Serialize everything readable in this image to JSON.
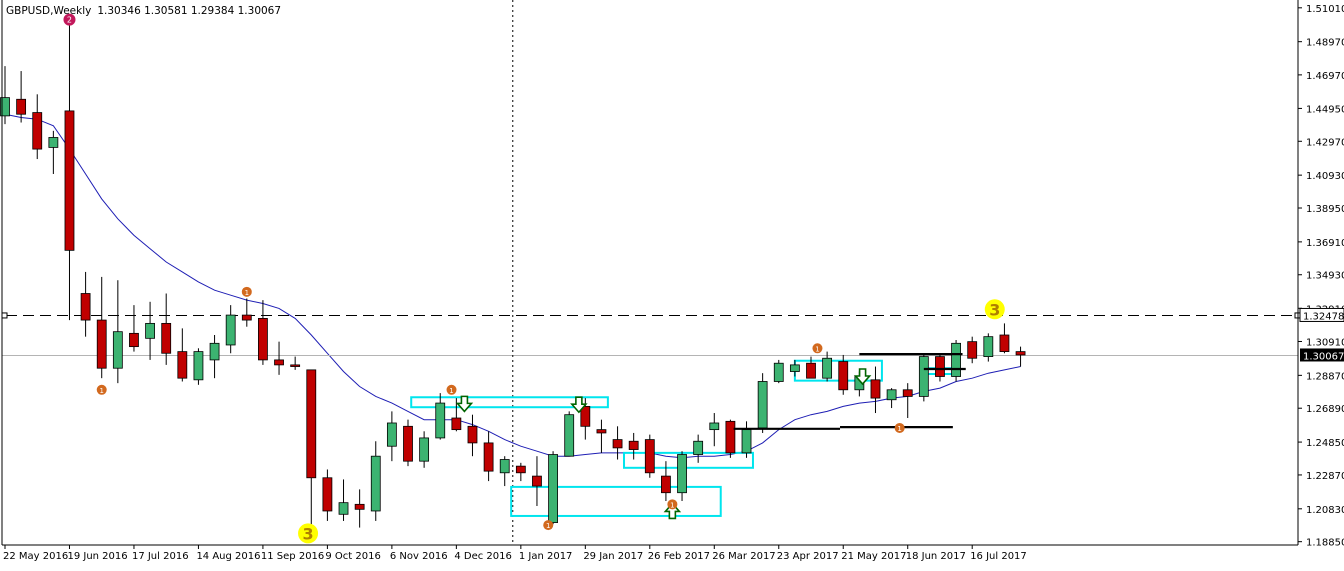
{
  "chart_data": {
    "type": "candlestick",
    "header": {
      "symbol": "GBPUSD,Weekly",
      "ohlc": "1.30346 1.30581 1.29384 1.30067"
    },
    "colors": {
      "bull": "#3cb371",
      "bear": "#c00000",
      "ma": "#1e1eb4",
      "box": "#00e5ee",
      "arrow": "#006400",
      "marker_orange": "#d2691e",
      "marker_magenta": "#c2185b",
      "wave_yellow": "#ffff00",
      "level": "#000000",
      "price_bg": "#000000"
    },
    "y_axis": {
      "min": 1.1865,
      "max": 1.513,
      "ticks": [
        "1.51010",
        "1.48970",
        "1.46970",
        "1.44950",
        "1.42970",
        "1.40930",
        "1.38950",
        "1.36910",
        "1.34930",
        "1.32910",
        "1.30910",
        "1.28870",
        "1.26890",
        "1.24850",
        "1.22870",
        "1.20830",
        "1.18850"
      ]
    },
    "x_axis": {
      "labels": [
        {
          "i": 0,
          "text": "22 May 2016"
        },
        {
          "i": 4,
          "text": "19 Jun 2016"
        },
        {
          "i": 8,
          "text": "17 Jul 2016"
        },
        {
          "i": 12,
          "text": "14 Aug 2016"
        },
        {
          "i": 16,
          "text": "11 Sep 2016"
        },
        {
          "i": 20,
          "text": "9 Oct 2016"
        },
        {
          "i": 24,
          "text": "6 Nov 2016"
        },
        {
          "i": 28,
          "text": "4 Dec 2016"
        },
        {
          "i": 32,
          "text": "1 Jan 2017"
        },
        {
          "i": 36,
          "text": "29 Jan 2017"
        },
        {
          "i": 40,
          "text": "26 Feb 2017"
        },
        {
          "i": 44,
          "text": "26 Mar 2017"
        },
        {
          "i": 48,
          "text": "23 Apr 2017"
        },
        {
          "i": 52,
          "text": "21 May 2017"
        },
        {
          "i": 56,
          "text": "18 Jun 2017"
        },
        {
          "i": 60,
          "text": "16 Jul 2017"
        }
      ]
    },
    "candles": [
      {
        "o": 1.445,
        "h": 1.475,
        "l": 1.44,
        "c": 1.456
      },
      {
        "o": 1.455,
        "h": 1.472,
        "l": 1.441,
        "c": 1.446
      },
      {
        "o": 1.447,
        "h": 1.458,
        "l": 1.419,
        "c": 1.425
      },
      {
        "o": 1.426,
        "h": 1.436,
        "l": 1.41,
        "c": 1.432
      },
      {
        "o": 1.448,
        "h": 1.503,
        "l": 1.322,
        "c": 1.364
      },
      {
        "o": 1.338,
        "h": 1.351,
        "l": 1.312,
        "c": 1.322
      },
      {
        "o": 1.322,
        "h": 1.348,
        "l": 1.287,
        "c": 1.293
      },
      {
        "o": 1.293,
        "h": 1.346,
        "l": 1.284,
        "c": 1.315
      },
      {
        "o": 1.314,
        "h": 1.331,
        "l": 1.303,
        "c": 1.306
      },
      {
        "o": 1.311,
        "h": 1.333,
        "l": 1.298,
        "c": 1.32
      },
      {
        "o": 1.32,
        "h": 1.338,
        "l": 1.295,
        "c": 1.302
      },
      {
        "o": 1.303,
        "h": 1.317,
        "l": 1.285,
        "c": 1.287
      },
      {
        "o": 1.286,
        "h": 1.305,
        "l": 1.283,
        "c": 1.303
      },
      {
        "o": 1.298,
        "h": 1.313,
        "l": 1.287,
        "c": 1.308
      },
      {
        "o": 1.307,
        "h": 1.331,
        "l": 1.302,
        "c": 1.325
      },
      {
        "o": 1.325,
        "h": 1.335,
        "l": 1.318,
        "c": 1.322
      },
      {
        "o": 1.323,
        "h": 1.334,
        "l": 1.295,
        "c": 1.298
      },
      {
        "o": 1.298,
        "h": 1.309,
        "l": 1.289,
        "c": 1.295
      },
      {
        "o": 1.295,
        "h": 1.3,
        "l": 1.292,
        "c": 1.294
      },
      {
        "o": 1.292,
        "h": 1.292,
        "l": 1.195,
        "c": 1.227
      },
      {
        "o": 1.227,
        "h": 1.232,
        "l": 1.201,
        "c": 1.207
      },
      {
        "o": 1.205,
        "h": 1.226,
        "l": 1.201,
        "c": 1.212
      },
      {
        "o": 1.211,
        "h": 1.22,
        "l": 1.197,
        "c": 1.208
      },
      {
        "o": 1.207,
        "h": 1.249,
        "l": 1.201,
        "c": 1.24
      },
      {
        "o": 1.246,
        "h": 1.267,
        "l": 1.237,
        "c": 1.26
      },
      {
        "o": 1.258,
        "h": 1.262,
        "l": 1.234,
        "c": 1.237
      },
      {
        "o": 1.237,
        "h": 1.255,
        "l": 1.233,
        "c": 1.251
      },
      {
        "o": 1.251,
        "h": 1.278,
        "l": 1.25,
        "c": 1.272
      },
      {
        "o": 1.263,
        "h": 1.275,
        "l": 1.255,
        "c": 1.256
      },
      {
        "o": 1.258,
        "h": 1.265,
        "l": 1.24,
        "c": 1.248
      },
      {
        "o": 1.248,
        "h": 1.255,
        "l": 1.225,
        "c": 1.231
      },
      {
        "o": 1.23,
        "h": 1.24,
        "l": 1.222,
        "c": 1.238
      },
      {
        "o": 1.234,
        "h": 1.236,
        "l": 1.225,
        "c": 1.23
      },
      {
        "o": 1.228,
        "h": 1.24,
        "l": 1.21,
        "c": 1.222
      },
      {
        "o": 1.2,
        "h": 1.243,
        "l": 1.199,
        "c": 1.241
      },
      {
        "o": 1.24,
        "h": 1.267,
        "l": 1.24,
        "c": 1.265
      },
      {
        "o": 1.27,
        "h": 1.275,
        "l": 1.25,
        "c": 1.258
      },
      {
        "o": 1.256,
        "h": 1.262,
        "l": 1.242,
        "c": 1.254
      },
      {
        "o": 1.25,
        "h": 1.258,
        "l": 1.238,
        "c": 1.245
      },
      {
        "o": 1.249,
        "h": 1.254,
        "l": 1.238,
        "c": 1.244
      },
      {
        "o": 1.25,
        "h": 1.253,
        "l": 1.227,
        "c": 1.23
      },
      {
        "o": 1.228,
        "h": 1.237,
        "l": 1.213,
        "c": 1.218
      },
      {
        "o": 1.218,
        "h": 1.243,
        "l": 1.213,
        "c": 1.241
      },
      {
        "o": 1.241,
        "h": 1.253,
        "l": 1.236,
        "c": 1.249
      },
      {
        "o": 1.256,
        "h": 1.266,
        "l": 1.246,
        "c": 1.26
      },
      {
        "o": 1.261,
        "h": 1.262,
        "l": 1.239,
        "c": 1.242
      },
      {
        "o": 1.242,
        "h": 1.261,
        "l": 1.239,
        "c": 1.256
      },
      {
        "o": 1.257,
        "h": 1.29,
        "l": 1.254,
        "c": 1.285
      },
      {
        "o": 1.285,
        "h": 1.298,
        "l": 1.284,
        "c": 1.296
      },
      {
        "o": 1.291,
        "h": 1.298,
        "l": 1.288,
        "c": 1.295
      },
      {
        "o": 1.296,
        "h": 1.3,
        "l": 1.287,
        "c": 1.287
      },
      {
        "o": 1.287,
        "h": 1.303,
        "l": 1.285,
        "c": 1.299
      },
      {
        "o": 1.297,
        "h": 1.301,
        "l": 1.277,
        "c": 1.28
      },
      {
        "o": 1.28,
        "h": 1.291,
        "l": 1.276,
        "c": 1.288
      },
      {
        "o": 1.286,
        "h": 1.294,
        "l": 1.266,
        "c": 1.275
      },
      {
        "o": 1.274,
        "h": 1.281,
        "l": 1.269,
        "c": 1.28
      },
      {
        "o": 1.28,
        "h": 1.284,
        "l": 1.263,
        "c": 1.276
      },
      {
        "o": 1.276,
        "h": 1.302,
        "l": 1.273,
        "c": 1.3
      },
      {
        "o": 1.3,
        "h": 1.301,
        "l": 1.285,
        "c": 1.288
      },
      {
        "o": 1.288,
        "h": 1.31,
        "l": 1.285,
        "c": 1.308
      },
      {
        "o": 1.309,
        "h": 1.312,
        "l": 1.296,
        "c": 1.299
      },
      {
        "o": 1.3,
        "h": 1.314,
        "l": 1.297,
        "c": 1.312
      },
      {
        "o": 1.313,
        "h": 1.32,
        "l": 1.302,
        "c": 1.303
      },
      {
        "o": 1.303,
        "h": 1.306,
        "l": 1.294,
        "c": 1.301
      }
    ],
    "ma": [
      1.446,
      1.444,
      1.443,
      1.439,
      1.425,
      1.41,
      1.395,
      1.383,
      1.373,
      1.365,
      1.357,
      1.351,
      1.345,
      1.34,
      1.337,
      1.334,
      1.332,
      1.329,
      1.323,
      1.313,
      1.302,
      1.291,
      1.282,
      1.276,
      1.272,
      1.267,
      1.262,
      1.262,
      1.262,
      1.259,
      1.255,
      1.25,
      1.246,
      1.243,
      1.24,
      1.24,
      1.241,
      1.242,
      1.242,
      1.242,
      1.242,
      1.24,
      1.239,
      1.24,
      1.24,
      1.241,
      1.243,
      1.248,
      1.256,
      1.262,
      1.265,
      1.267,
      1.27,
      1.272,
      1.273,
      1.275,
      1.276,
      1.279,
      1.281,
      1.285,
      1.287,
      1.29,
      1.292,
      1.294
    ],
    "hlines": [
      {
        "kind": "dashed",
        "price": 1.32478,
        "label": "1.32478"
      },
      {
        "kind": "grey",
        "price": 1.30067,
        "label": "1.30067"
      }
    ],
    "vline_index": 31.5,
    "levels": [
      {
        "i0": 45.2,
        "i1": 51.8,
        "price": 1.2565
      },
      {
        "i0": 51.8,
        "i1": 58.8,
        "price": 1.2575
      },
      {
        "i0": 53.0,
        "i1": 59.4,
        "price": 1.3015
      },
      {
        "i0": 57.0,
        "i1": 59.6,
        "price": 1.2925
      }
    ],
    "boxes": [
      {
        "i0": 25.2,
        "i1": 37.4,
        "top": 1.2755,
        "bottom": 1.2695
      },
      {
        "i0": 31.4,
        "i1": 44.4,
        "top": 1.2215,
        "bottom": 1.204
      },
      {
        "i0": 38.4,
        "i1": 46.4,
        "top": 1.242,
        "bottom": 1.233
      },
      {
        "i0": 49.0,
        "i1": 54.4,
        "top": 1.2975,
        "bottom": 1.2855
      },
      {
        "i0": 56.8,
        "i1": 58.8,
        "top": 1.293,
        "bottom": 1.2895
      }
    ],
    "arrows": [
      {
        "i": 28.5,
        "price": 1.27,
        "dir": "down"
      },
      {
        "i": 35.6,
        "price": 1.2695,
        "dir": "down"
      },
      {
        "i": 53.2,
        "price": 1.2865,
        "dir": "down"
      },
      {
        "i": 41.4,
        "price": 1.2085,
        "dir": "up"
      }
    ],
    "markers": [
      {
        "i": 4,
        "price": 1.503,
        "kind": "magenta",
        "text": "2"
      },
      {
        "i": 6,
        "price": 1.28,
        "kind": "orange",
        "text": "1"
      },
      {
        "i": 15,
        "price": 1.339,
        "kind": "orange",
        "text": "1"
      },
      {
        "i": 27.7,
        "price": 1.28,
        "kind": "orange",
        "text": "1"
      },
      {
        "i": 33.7,
        "price": 1.1985,
        "kind": "orange",
        "text": "1"
      },
      {
        "i": 41.4,
        "price": 1.211,
        "kind": "orange",
        "text": "1"
      },
      {
        "i": 50.4,
        "price": 1.305,
        "kind": "orange",
        "text": "1"
      },
      {
        "i": 55.5,
        "price": 1.257,
        "kind": "orange",
        "text": "1"
      }
    ],
    "wave_labels": [
      {
        "i": 18.8,
        "price": 1.1935,
        "text": "3"
      },
      {
        "i": 61.4,
        "price": 1.3285,
        "text": "3"
      }
    ]
  }
}
